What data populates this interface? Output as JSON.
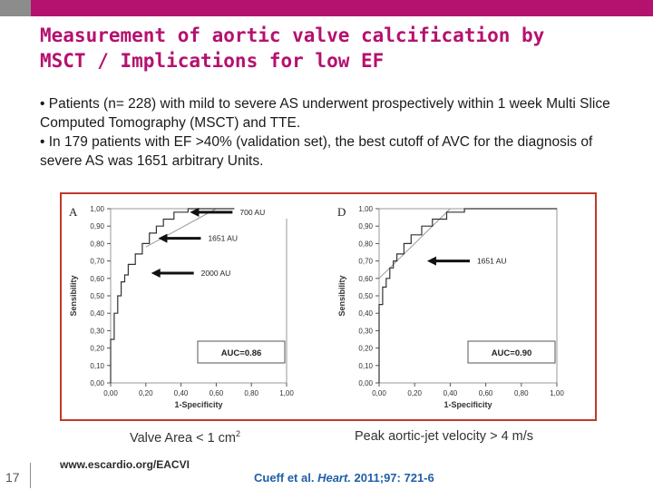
{
  "header": {
    "gray_accent": "#8c8c8c",
    "pink_accent": "#b5116f"
  },
  "title": {
    "line1": "Measurement of aortic valve calcification by",
    "line2": "MSCT / Implications for low EF"
  },
  "bullets": [
    "• Patients (n= 228) with mild to severe AS underwent prospectively within 1 week Multi Slice Computed Tomography (MSCT) and TTE.",
    "• In 179 patients with EF >40% (validation set), the best cutoff of AVC for the diagnosis of severe AS was 1651 arbitrary Units."
  ],
  "chart_data": [
    {
      "type": "line",
      "panel_label": "A",
      "xlabel": "1-Specificity",
      "ylabel": "Sensibility",
      "xlim": [
        0,
        1
      ],
      "ylim": [
        0,
        1
      ],
      "xticks": [
        "0,00",
        "0,20",
        "0,40",
        "0,60",
        "0,80",
        "1,00"
      ],
      "yticks": [
        "0,00",
        "0,10",
        "0,20",
        "0,30",
        "0,40",
        "0,50",
        "0,60",
        "0,70",
        "0,80",
        "0,90",
        "1,00"
      ],
      "series": [
        {
          "x": [
            0,
            0,
            0.02,
            0.02,
            0.04,
            0.04,
            0.06,
            0.06,
            0.08,
            0.08,
            0.1,
            0.1,
            0.14,
            0.14,
            0.18,
            0.18,
            0.22,
            0.22,
            0.26,
            0.26,
            0.3,
            0.3,
            0.36,
            0.36,
            0.44,
            0.44,
            1.0
          ],
          "y": [
            0,
            0.25,
            0.25,
            0.4,
            0.4,
            0.5,
            0.5,
            0.58,
            0.58,
            0.62,
            0.62,
            0.68,
            0.68,
            0.74,
            0.74,
            0.8,
            0.8,
            0.86,
            0.86,
            0.9,
            0.9,
            0.94,
            0.94,
            0.98,
            0.98,
            1.0,
            1.0
          ]
        }
      ],
      "annotations": [
        {
          "text": "700 AU",
          "x": 0.44,
          "y": 0.98
        },
        {
          "text": "1651 AU",
          "x": 0.26,
          "y": 0.83
        },
        {
          "text": "2000 AU",
          "x": 0.22,
          "y": 0.63
        }
      ],
      "auc_label": "AUC=0.86",
      "diagonal": [
        [
          0.2,
          0.78
        ],
        [
          0.6,
          1.0
        ]
      ]
    },
    {
      "type": "line",
      "panel_label": "D",
      "xlabel": "1-Specificity",
      "ylabel": "Sensibility",
      "xlim": [
        0,
        1
      ],
      "ylim": [
        0,
        1
      ],
      "xticks": [
        "0,00",
        "0,20",
        "0,40",
        "0,60",
        "0,80",
        "1,00"
      ],
      "yticks": [
        "0,00",
        "0,10",
        "0,20",
        "0,30",
        "0,40",
        "0,50",
        "0,60",
        "0,70",
        "0,80",
        "0,90",
        "1,00"
      ],
      "series": [
        {
          "x": [
            0,
            0,
            0.02,
            0.02,
            0.04,
            0.04,
            0.06,
            0.06,
            0.08,
            0.08,
            0.1,
            0.1,
            0.14,
            0.14,
            0.18,
            0.18,
            0.24,
            0.24,
            0.3,
            0.3,
            0.38,
            0.38,
            0.48,
            0.48,
            1.0
          ],
          "y": [
            0,
            0.45,
            0.45,
            0.55,
            0.55,
            0.6,
            0.6,
            0.66,
            0.66,
            0.7,
            0.7,
            0.74,
            0.74,
            0.8,
            0.8,
            0.85,
            0.85,
            0.9,
            0.9,
            0.94,
            0.94,
            0.98,
            0.98,
            1.0,
            1.0
          ]
        }
      ],
      "annotations": [
        {
          "text": "1651 AU",
          "x": 0.26,
          "y": 0.7
        }
      ],
      "auc_label": "AUC=0.90",
      "diagonal": [
        [
          0.0,
          0.6
        ],
        [
          0.4,
          1.0
        ]
      ]
    }
  ],
  "captions": {
    "left": "Valve Area < 1 cm",
    "left_sup": "2",
    "right": "Peak aortic-jet velocity > 4 m/s"
  },
  "footer": {
    "url": "www.escardio.org/EACVI",
    "page": "17",
    "citation_authors": "Cueff et al. ",
    "citation_journal": "Heart.",
    "citation_rest": " 2011;97: 721-6"
  }
}
